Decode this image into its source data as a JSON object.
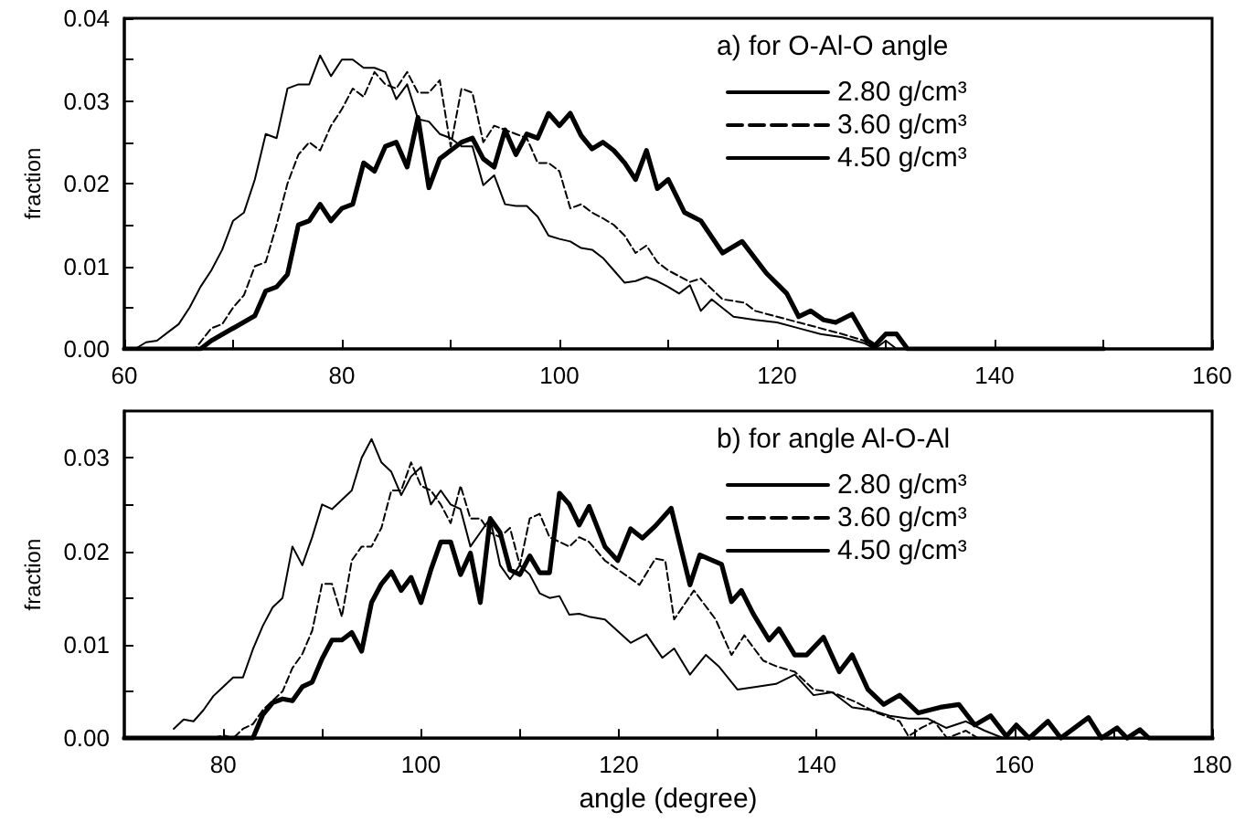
{
  "chart_data": [
    {
      "type": "line",
      "legend_title": "a) for O-Al-O angle",
      "legend": "top right",
      "ylabel": "fraction",
      "xlim": [
        60,
        160
      ],
      "xticks": [
        60,
        {
          "value": 70,
          "label": null
        },
        80,
        {
          "value": 90,
          "label": null
        },
        100,
        {
          "value": 110,
          "label": null
        },
        120,
        {
          "value": 130,
          "label": null
        },
        140,
        {
          "value": 150,
          "label": null
        },
        160
      ],
      "ylim": [
        0,
        0.04
      ],
      "yticks": [
        {
          "value": 0,
          "label": "0.00"
        },
        {
          "value": 0.005,
          "label": null
        },
        {
          "value": 0.01,
          "label": "0.01"
        },
        {
          "value": 0.015,
          "label": null
        },
        {
          "value": 0.02,
          "label": "0.02"
        },
        {
          "value": 0.025,
          "label": null
        },
        {
          "value": 0.03,
          "label": "0.03"
        },
        {
          "value": 0.035,
          "label": null
        },
        {
          "value": 0.04,
          "label": "0.04"
        }
      ],
      "series": [
        {
          "name": "2.80 g/cm³",
          "color": "#000000",
          "line_style": "solid",
          "x": [
            60,
            67,
            68,
            70,
            72,
            73,
            74,
            75,
            76,
            77,
            78,
            79,
            80,
            81,
            82,
            83,
            84,
            85,
            86,
            87,
            88,
            89,
            90,
            91,
            92,
            93,
            94,
            95,
            96,
            97,
            98,
            99,
            100,
            101,
            102,
            103,
            104,
            105,
            106,
            107,
            108,
            109,
            110,
            111.5,
            113,
            115,
            116.8,
            119,
            120.9,
            122,
            123.1,
            124.3,
            125.4,
            126.9,
            128.3,
            129,
            130,
            131,
            132,
            150
          ],
          "values": [
            0,
            0,
            0.001,
            0.0025,
            0.004,
            0.007,
            0.0075,
            0.009,
            0.015,
            0.0155,
            0.0175,
            0.0155,
            0.017,
            0.0175,
            0.0225,
            0.0215,
            0.0245,
            0.025,
            0.022,
            0.028,
            0.0195,
            0.023,
            0.024,
            0.025,
            0.0255,
            0.023,
            0.022,
            0.0265,
            0.0235,
            0.026,
            0.0255,
            0.0285,
            0.027,
            0.0285,
            0.0258,
            0.0242,
            0.025,
            0.024,
            0.0225,
            0.0205,
            0.024,
            0.0194,
            0.0205,
            0.0165,
            0.0155,
            0.0116,
            0.013,
            0.0092,
            0.0067,
            0.0039,
            0.0046,
            0.0035,
            0.0032,
            0.0042,
            0.001,
            0.0004,
            0.0018,
            0.0018,
            0,
            0
          ]
        },
        {
          "name": "3.60 g/cm³",
          "color": "#000000",
          "line_style": "dashed",
          "x": [
            60,
            66.5,
            68,
            69,
            70,
            71,
            72,
            73,
            74,
            75,
            76,
            77,
            78,
            79,
            80,
            81,
            82,
            83,
            84,
            85,
            86,
            87,
            88,
            89,
            90,
            91,
            92,
            93,
            94,
            95,
            96,
            97,
            98,
            99,
            100,
            101,
            102,
            103,
            104,
            105,
            106,
            107,
            108,
            109,
            110,
            112,
            113,
            115,
            117,
            118,
            120,
            122,
            124,
            126,
            128,
            129,
            150
          ],
          "values": [
            0,
            0,
            0.0025,
            0.003,
            0.005,
            0.0065,
            0.01,
            0.0105,
            0.015,
            0.02,
            0.0235,
            0.025,
            0.024,
            0.027,
            0.029,
            0.0315,
            0.0305,
            0.0335,
            0.032,
            0.0315,
            0.0335,
            0.031,
            0.031,
            0.0325,
            0.0245,
            0.0315,
            0.031,
            0.025,
            0.027,
            0.0265,
            0.026,
            0.0255,
            0.0225,
            0.0225,
            0.0215,
            0.017,
            0.0175,
            0.0165,
            0.0158,
            0.015,
            0.0137,
            0.0116,
            0.0125,
            0.0105,
            0.0095,
            0.0081,
            0.0085,
            0.006,
            0.0056,
            0.0046,
            0.0039,
            0.0032,
            0.0025,
            0.0018,
            0.001,
            0,
            0
          ]
        },
        {
          "name": "4.50 g/cm³",
          "color": "#000000",
          "line_style": "solid",
          "x": [
            60,
            61,
            62,
            63,
            64,
            65,
            66,
            67,
            68,
            69,
            70,
            71,
            72,
            73,
            74,
            75,
            76,
            77,
            78,
            79,
            80,
            81,
            82,
            83,
            84,
            85,
            86,
            87,
            88,
            89,
            90,
            91,
            92,
            93,
            94,
            95,
            96,
            97,
            98,
            99,
            100,
            101,
            102,
            103,
            104,
            105,
            106,
            107,
            108,
            109,
            110,
            111,
            112,
            113,
            114,
            116,
            118,
            120,
            122,
            124,
            126,
            128,
            129,
            130,
            131,
            150
          ],
          "values": [
            0,
            0,
            0.0008,
            0.001,
            0.002,
            0.003,
            0.005,
            0.0075,
            0.0095,
            0.012,
            0.0155,
            0.0165,
            0.0205,
            0.026,
            0.0255,
            0.0315,
            0.032,
            0.032,
            0.0355,
            0.033,
            0.035,
            0.035,
            0.034,
            0.034,
            0.0335,
            0.0302,
            0.032,
            0.0278,
            0.0275,
            0.026,
            0.0255,
            0.0245,
            0.0245,
            0.0198,
            0.021,
            0.0175,
            0.0173,
            0.0173,
            0.016,
            0.0137,
            0.0133,
            0.013,
            0.0122,
            0.012,
            0.011,
            0.0095,
            0.008,
            0.0082,
            0.0087,
            0.0082,
            0.0075,
            0.0067,
            0.0077,
            0.0046,
            0.006,
            0.0039,
            0.0035,
            0.0032,
            0.0025,
            0.0018,
            0.0014,
            0.0007,
            0,
            0.001,
            0,
            0
          ]
        }
      ]
    },
    {
      "type": "line",
      "legend_title": "b) for angle Al-O-Al",
      "legend": "top right",
      "xlabel": "angle (degree)",
      "ylabel": "fraction",
      "xlim": [
        70,
        180
      ],
      "xticks": [
        80,
        {
          "value": 90,
          "label": null
        },
        100,
        {
          "value": 110,
          "label": null
        },
        120,
        {
          "value": 130,
          "label": null
        },
        140,
        {
          "value": 150,
          "label": null
        },
        160,
        {
          "value": 170,
          "label": null
        },
        180
      ],
      "ylim": [
        0,
        0.035
      ],
      "yticks": [
        {
          "value": 0,
          "label": "0.00"
        },
        {
          "value": 0.005,
          "label": null
        },
        {
          "value": 0.01,
          "label": "0.01"
        },
        {
          "value": 0.015,
          "label": null
        },
        {
          "value": 0.02,
          "label": "0.02"
        },
        {
          "value": 0.025,
          "label": null
        },
        {
          "value": 0.03,
          "label": "0.03"
        }
      ],
      "series": [
        {
          "name": "2.80 g/cm³",
          "color": "#000000",
          "line_style": "solid",
          "x": [
            70,
            83,
            84,
            85,
            86,
            87,
            88,
            89,
            90,
            91,
            92,
            93,
            94,
            95,
            96,
            97,
            98,
            99,
            100,
            101,
            102,
            103,
            104,
            105,
            106,
            107,
            108,
            109,
            110,
            111,
            112,
            113,
            114,
            115,
            116,
            117,
            118.6,
            119.9,
            121.2,
            122.4,
            123.7,
            125.3,
            127.2,
            128.2,
            130.4,
            131.4,
            132.4,
            133.6,
            135.2,
            136.2,
            137.8,
            139,
            140.7,
            142.3,
            143.6,
            145.2,
            146.8,
            148.4,
            150.3,
            152.5,
            154.4,
            156,
            157.6,
            159.2,
            160.2,
            161.5,
            163.4,
            164.7,
            167.5,
            168.8,
            170.4,
            171.4,
            172.7,
            173.6,
            180
          ],
          "values": [
            0,
            0,
            0.0025,
            0.0038,
            0.0042,
            0.004,
            0.0055,
            0.006,
            0.0085,
            0.0105,
            0.0105,
            0.0113,
            0.0093,
            0.0145,
            0.0165,
            0.0178,
            0.0158,
            0.0172,
            0.0145,
            0.018,
            0.021,
            0.021,
            0.0175,
            0.0198,
            0.0145,
            0.0235,
            0.022,
            0.018,
            0.0175,
            0.0195,
            0.0177,
            0.0177,
            0.0262,
            0.025,
            0.0228,
            0.0248,
            0.0205,
            0.019,
            0.0224,
            0.0214,
            0.0227,
            0.0246,
            0.0164,
            0.0196,
            0.0186,
            0.0146,
            0.0158,
            0.0133,
            0.0105,
            0.0117,
            0.0089,
            0.0089,
            0.0108,
            0.0071,
            0.0089,
            0.0052,
            0.0036,
            0.0046,
            0.0027,
            0.0033,
            0.0036,
            0.0014,
            0.0024,
            0.0002,
            0.0014,
            0,
            0.0018,
            0,
            0.0022,
            0,
            0.0011,
            0,
            0.0009,
            0,
            0
          ]
        },
        {
          "name": "3.60 g/cm³",
          "color": "#000000",
          "line_style": "dashed",
          "x": [
            79,
            80,
            81,
            82,
            83,
            84,
            85,
            86,
            87,
            88,
            89,
            90,
            91,
            92,
            93,
            94,
            95,
            96,
            97,
            98,
            99,
            100,
            101,
            102,
            103,
            104,
            105,
            106,
            107,
            108,
            109,
            110,
            111,
            112,
            113,
            114,
            115,
            116,
            117,
            118.6,
            122.1,
            123.7,
            124.7,
            125.6,
            127.6,
            129.8,
            131.4,
            132.7,
            134.6,
            135.9,
            137.8,
            139.7,
            141.6,
            143.9,
            146.1,
            148.4,
            149.3,
            150.6,
            151.9,
            153.2,
            155.1,
            156.3,
            160
          ],
          "values": [
            0,
            0.0003,
            0,
            0.001,
            0.0015,
            0.003,
            0.004,
            0.005,
            0.0075,
            0.009,
            0.0115,
            0.0165,
            0.0165,
            0.013,
            0.019,
            0.0205,
            0.0205,
            0.0225,
            0.0265,
            0.0265,
            0.0295,
            0.027,
            0.0265,
            0.025,
            0.023,
            0.027,
            0.0235,
            0.0235,
            0.022,
            0.0215,
            0.0225,
            0.0185,
            0.0235,
            0.024,
            0.0215,
            0.021,
            0.0205,
            0.0215,
            0.021,
            0.019,
            0.0164,
            0.0192,
            0.019,
            0.0127,
            0.0158,
            0.0127,
            0.0089,
            0.011,
            0.0083,
            0.0077,
            0.0071,
            0.0052,
            0.0049,
            0.0039,
            0.0027,
            0.0018,
            0.0002,
            0.0011,
            0.0018,
            0,
            0.0008,
            0,
            0
          ]
        },
        {
          "name": "4.50 g/cm³",
          "color": "#000000",
          "line_style": "solid",
          "x": [
            75,
            76,
            77,
            78,
            79,
            80,
            81,
            82,
            83,
            84,
            85,
            86,
            87,
            88,
            89,
            90,
            91,
            92,
            93,
            94,
            95,
            96,
            97,
            98,
            99,
            100,
            101,
            102,
            103,
            104,
            105,
            106,
            107,
            108,
            109,
            110,
            111,
            112,
            113,
            114,
            115,
            116,
            117,
            118.6,
            121.2,
            122.8,
            124.4,
            125.6,
            127.2,
            128.8,
            130.1,
            132,
            133.9,
            135.9,
            137.8,
            139.7,
            141.6,
            143.6,
            145.5,
            147.4,
            149.3,
            151.2,
            153.1,
            155.1,
            157,
            158.9,
            160
          ],
          "values": [
            0.001,
            0.002,
            0.0018,
            0.003,
            0.0045,
            0.0055,
            0.0065,
            0.0065,
            0.0095,
            0.012,
            0.014,
            0.015,
            0.0205,
            0.0185,
            0.0215,
            0.025,
            0.0245,
            0.0255,
            0.0265,
            0.03,
            0.032,
            0.0295,
            0.0285,
            0.026,
            0.028,
            0.029,
            0.025,
            0.0265,
            0.025,
            0.0245,
            0.0205,
            0.022,
            0.0235,
            0.0185,
            0.017,
            0.0185,
            0.0175,
            0.0155,
            0.015,
            0.0152,
            0.0132,
            0.0133,
            0.013,
            0.0127,
            0.0102,
            0.0111,
            0.0086,
            0.0096,
            0.0068,
            0.0089,
            0.0077,
            0.0052,
            0.0055,
            0.0058,
            0.0068,
            0.0046,
            0.0049,
            0.0033,
            0.003,
            0.0024,
            0.0021,
            0.0021,
            0.0011,
            0.0018,
            0.0008,
            0,
            0
          ]
        }
      ]
    }
  ]
}
